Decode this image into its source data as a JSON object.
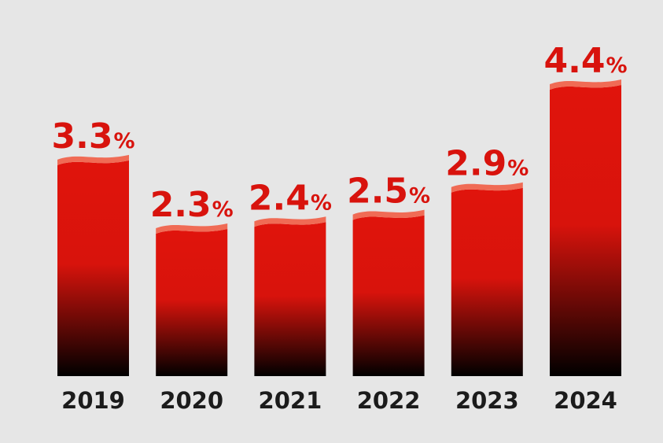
{
  "chart_data": {
    "type": "bar",
    "categories": [
      "2019",
      "2020",
      "2021",
      "2022",
      "2023",
      "2024"
    ],
    "values": [
      3.3,
      2.3,
      2.4,
      2.5,
      2.9,
      4.4
    ],
    "value_labels": [
      "3.3",
      "2.3",
      "2.4",
      "2.5",
      "2.9",
      "4.4"
    ],
    "value_suffix": "%",
    "title": "",
    "xlabel": "",
    "ylabel": "",
    "ylim": [
      0,
      5
    ],
    "grid": false,
    "legend": "none"
  },
  "colors": {
    "background": "#e6e6e6",
    "bar_top": "#e0140c",
    "bar_bottom": "#000000",
    "bar_cap": "#f06b55",
    "value_label": "#d8130d",
    "category_label": "#1b1b1b"
  }
}
